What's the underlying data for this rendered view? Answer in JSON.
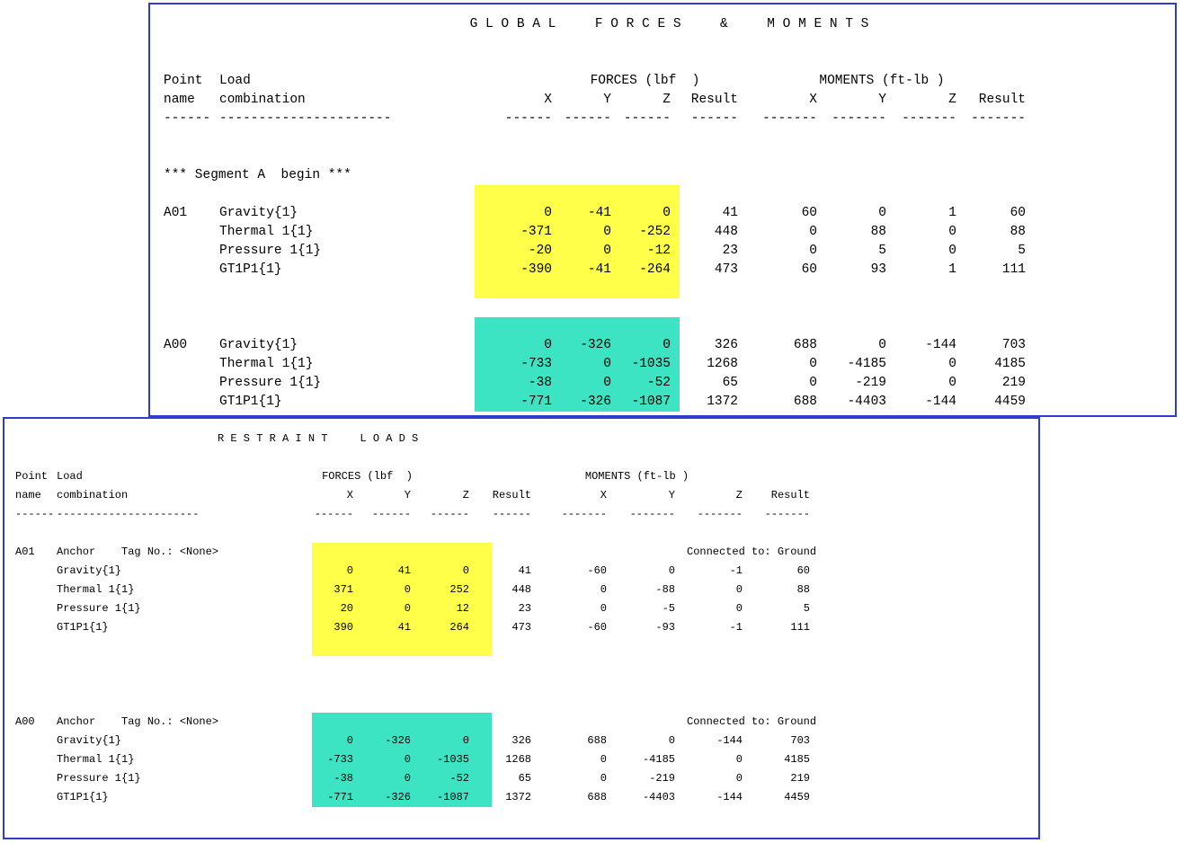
{
  "colors": {
    "window_border": "#2e3cc8",
    "highlight_yellow": "#ffff4a",
    "highlight_cyan": "#3ce4c3",
    "text": "#000000"
  },
  "panels": [
    {
      "name": "Global Forces & Moments",
      "title": "G L O B A L     F O R C E S     &     M O M E N T S",
      "header": {
        "point_label": "Point",
        "name_label": "name",
        "load_label": "Load",
        "combination_label": "combination",
        "forces_group_label": "FORCES (lbf  )",
        "moments_group_label": "MOMENTS (ft-lb )",
        "force_cols": [
          "X",
          "Y",
          "Z",
          "Result"
        ],
        "moment_cols": [
          "X",
          "Y",
          "Z",
          "Result"
        ],
        "dashes": {
          "point": "------",
          "combination": "----------------------",
          "force": "------",
          "moment": "-------"
        }
      },
      "segment_note": "*** Segment A  begin ***",
      "groups": [
        {
          "point": "A01",
          "highlight": "yellow",
          "gap_before": 0,
          "hl_lead_blanks": 1,
          "hl_trail_blanks": 1,
          "rows": [
            {
              "combo": "Gravity{1}",
              "f": [
                "0",
                "-41",
                "0",
                "41"
              ],
              "m": [
                "60",
                "0",
                "1",
                "60"
              ]
            },
            {
              "combo": "Thermal 1{1}",
              "f": [
                "-371",
                "0",
                "-252",
                "448"
              ],
              "m": [
                "0",
                "88",
                "0",
                "88"
              ]
            },
            {
              "combo": "Pressure 1{1}",
              "f": [
                "-20",
                "0",
                "-12",
                "23"
              ],
              "m": [
                "0",
                "5",
                "0",
                "5"
              ]
            },
            {
              "combo": "GT1P1{1}",
              "f": [
                "-390",
                "-41",
                "-264",
                "473"
              ],
              "m": [
                "60",
                "93",
                "1",
                "111"
              ]
            }
          ]
        },
        {
          "point": "A00",
          "highlight": "cyan",
          "gap_before": 1,
          "hl_lead_blanks": 1,
          "hl_trail_blanks": 0,
          "rows": [
            {
              "combo": "Gravity{1}",
              "f": [
                "0",
                "-326",
                "0",
                "326"
              ],
              "m": [
                "688",
                "0",
                "-144",
                "703"
              ]
            },
            {
              "combo": "Thermal 1{1}",
              "f": [
                "-733",
                "0",
                "-1035",
                "1268"
              ],
              "m": [
                "0",
                "-4185",
                "0",
                "4185"
              ]
            },
            {
              "combo": "Pressure 1{1}",
              "f": [
                "-38",
                "0",
                "-52",
                "65"
              ],
              "m": [
                "0",
                "-219",
                "0",
                "219"
              ]
            },
            {
              "combo": "GT1P1{1}",
              "f": [
                "-771",
                "-326",
                "-1087",
                "1372"
              ],
              "m": [
                "688",
                "-4403",
                "-144",
                "4459"
              ]
            }
          ]
        }
      ]
    },
    {
      "name": "Restraint Loads",
      "title": "R E S T R A I N T     L O A D S",
      "header": {
        "point_label": "Point",
        "name_label": "name",
        "load_label": "Load",
        "combination_label": "combination",
        "forces_group_label": "FORCES (lbf  )",
        "moments_group_label": "MOMENTS (ft-lb )",
        "force_cols": [
          "X",
          "Y",
          "Z",
          "Result"
        ],
        "moment_cols": [
          "X",
          "Y",
          "Z",
          "Result"
        ],
        "dashes": {
          "point": "------",
          "combination": "----------------------",
          "force": "------",
          "moment": "-------"
        }
      },
      "groups": [
        {
          "point": "A01",
          "highlight": "yellow",
          "gap_before": 0,
          "hl_lead_blanks": 0,
          "hl_trail_blanks": 1,
          "anchor": {
            "label": "Anchor    Tag No.: <None>",
            "connected": "Connected to: Ground"
          },
          "rows": [
            {
              "combo": "Gravity{1}",
              "f": [
                "0",
                "41",
                "0",
                "41"
              ],
              "m": [
                "-60",
                "0",
                "-1",
                "60"
              ]
            },
            {
              "combo": "Thermal 1{1}",
              "f": [
                "371",
                "0",
                "252",
                "448"
              ],
              "m": [
                "0",
                "-88",
                "0",
                "88"
              ]
            },
            {
              "combo": "Pressure 1{1}",
              "f": [
                "20",
                "0",
                "12",
                "23"
              ],
              "m": [
                "0",
                "-5",
                "0",
                "5"
              ]
            },
            {
              "combo": "GT1P1{1}",
              "f": [
                "390",
                "41",
                "264",
                "473"
              ],
              "m": [
                "-60",
                "-93",
                "-1",
                "111"
              ]
            }
          ]
        },
        {
          "point": "A00",
          "highlight": "cyan",
          "gap_before": 3,
          "hl_lead_blanks": 0,
          "hl_trail_blanks": 0,
          "anchor": {
            "label": "Anchor    Tag No.: <None>",
            "connected": "Connected to: Ground"
          },
          "rows": [
            {
              "combo": "Gravity{1}",
              "f": [
                "0",
                "-326",
                "0",
                "326"
              ],
              "m": [
                "688",
                "0",
                "-144",
                "703"
              ]
            },
            {
              "combo": "Thermal 1{1}",
              "f": [
                "-733",
                "0",
                "-1035",
                "1268"
              ],
              "m": [
                "0",
                "-4185",
                "0",
                "4185"
              ]
            },
            {
              "combo": "Pressure 1{1}",
              "f": [
                "-38",
                "0",
                "-52",
                "65"
              ],
              "m": [
                "0",
                "-219",
                "0",
                "219"
              ]
            },
            {
              "combo": "GT1P1{1}",
              "f": [
                "-771",
                "-326",
                "-1087",
                "1372"
              ],
              "m": [
                "688",
                "-4403",
                "-144",
                "4459"
              ]
            }
          ]
        }
      ]
    }
  ]
}
